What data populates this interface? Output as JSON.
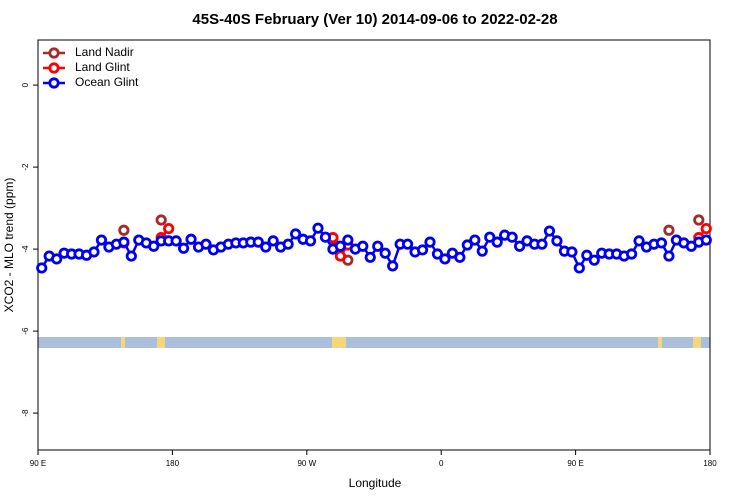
{
  "chart_data": {
    "type": "line",
    "title": "45S-40S February (Ver 10)   2014-09-06 to 2022-02-28",
    "xlabel": "Longitude",
    "ylabel": "XCO2 - MLO trend (ppm)",
    "xlim": [
      90,
      540
    ],
    "xticks": [
      {
        "value": 90,
        "label": "90 E"
      },
      180,
      {
        "value": 270,
        "label": "90 W"
      },
      {
        "value": 360,
        "label": "0"
      },
      {
        "value": 450,
        "label": "90 E"
      },
      {
        "value": 540,
        "label": "180"
      }
    ],
    "ylim": [
      -8.9,
      1.1
    ],
    "yticks": [
      0,
      -2,
      -4,
      -6,
      -8
    ],
    "legend": "upper left",
    "series": [
      {
        "name": "Land Nadir",
        "color": "#a52a2a",
        "x": [
          147.5,
          null,
          172.5,
          null,
          287.5,
          297.5,
          null,
          512.5,
          null,
          532.5
        ],
        "values": [
          -3.54,
          null,
          -3.29,
          null,
          -3.75,
          -4.27,
          null,
          -3.54,
          null,
          -3.29
        ]
      },
      {
        "name": "Land Glint",
        "color": "#ff0000",
        "x": [
          147.5,
          null,
          172.5,
          177.5,
          null,
          287.5,
          292.5,
          297.5,
          null,
          532.5,
          537.5
        ],
        "values": [
          -3.85,
          null,
          -3.72,
          -3.5,
          null,
          -3.72,
          -4.17,
          -3.9,
          null,
          -3.72,
          -3.5
        ]
      },
      {
        "name": "Ocean Glint",
        "color": "#0000ee",
        "x": [
          92.5,
          97.5,
          102.5,
          107.5,
          112.5,
          117.5,
          122.5,
          127.5,
          132.5,
          137.5,
          142.5,
          147.5,
          152.5,
          157.5,
          162.5,
          167.5,
          172.5,
          177.5,
          182.5,
          187.5,
          192.5,
          197.5,
          202.5,
          207.5,
          212.5,
          217.5,
          222.5,
          227.5,
          232.5,
          237.5,
          242.5,
          247.5,
          252.5,
          257.5,
          262.5,
          267.5,
          272.5,
          277.5,
          282.5,
          287.5,
          292.5,
          297.5,
          302.5,
          307.5,
          312.5,
          317.5,
          322.5,
          327.5,
          332.5,
          337.5,
          342.5,
          347.5,
          352.5,
          357.5,
          362.5,
          367.5,
          372.5,
          377.5,
          382.5,
          387.5,
          392.5,
          397.5,
          402.5,
          407.5,
          412.5,
          417.5,
          422.5,
          427.5,
          432.5,
          437.5,
          442.5,
          447.5,
          452.5,
          457.5,
          462.5,
          467.5,
          472.5,
          477.5,
          482.5,
          487.5,
          492.5,
          497.5,
          502.5,
          507.5,
          512.5,
          517.5,
          522.5,
          527.5,
          532.5,
          537.5
        ],
        "values": [
          -4.46,
          -4.17,
          -4.24,
          -4.1,
          -4.12,
          -4.12,
          -4.15,
          -4.07,
          -3.78,
          -3.95,
          -3.88,
          -3.83,
          -4.17,
          -3.78,
          -3.85,
          -3.93,
          -3.8,
          -3.8,
          -3.8,
          -3.98,
          -3.76,
          -3.95,
          -3.88,
          -4.02,
          -3.95,
          -3.88,
          -3.85,
          -3.85,
          -3.83,
          -3.83,
          -3.95,
          -3.8,
          -3.95,
          -3.88,
          -3.63,
          -3.76,
          -3.8,
          -3.49,
          -3.71,
          -4.0,
          -3.93,
          -3.78,
          -4.0,
          -3.93,
          -4.2,
          -3.93,
          -4.1,
          -4.41,
          -3.88,
          -3.88,
          -4.07,
          -4.02,
          -3.83,
          -4.12,
          -4.24,
          -4.1,
          -4.2,
          -3.9,
          -3.78,
          -4.05,
          -3.71,
          -3.83,
          -3.66,
          -3.71,
          -3.93,
          -3.8,
          -3.88,
          -3.88,
          -3.56,
          -3.8,
          -4.05,
          -4.07,
          -4.46,
          -4.15,
          -4.27,
          -4.1,
          -4.12,
          -4.12,
          -4.17,
          -4.12,
          -3.8,
          -3.95,
          -3.88,
          -3.85,
          -4.17,
          -3.78,
          -3.85,
          -3.93,
          -3.83,
          -3.78
        ]
      }
    ]
  }
}
